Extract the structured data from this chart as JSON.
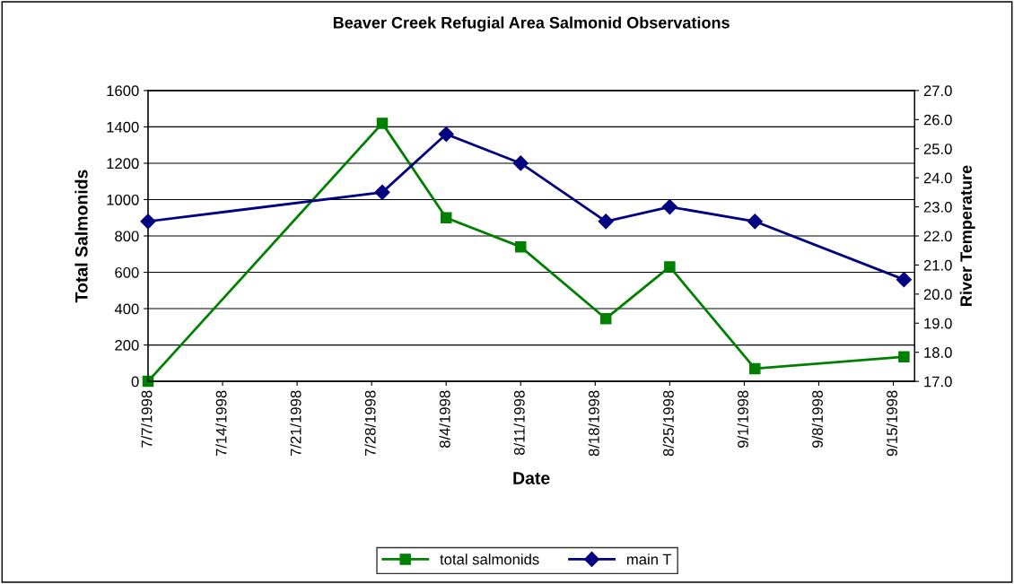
{
  "chart_data": {
    "type": "line",
    "title": "Beaver Creek Refugial Area Salmonid Observations",
    "xlabel": "Date",
    "ylabel": "Total Salmonids",
    "y2label": "River Temperature",
    "x": [
      "1998-07-07",
      "1998-07-29",
      "1998-08-04",
      "1998-08-11",
      "1998-08-19",
      "1998-08-25",
      "1998-09-02",
      "1998-09-16"
    ],
    "series": [
      {
        "name": "total salmonids",
        "color": "#008000",
        "marker": "square",
        "values": [
          0,
          1420,
          900,
          740,
          345,
          630,
          70,
          135
        ]
      },
      {
        "name": "main T",
        "color": "#000080",
        "marker": "diamond",
        "axis": "y2",
        "values": [
          22.5,
          23.5,
          25.5,
          24.5,
          22.5,
          23.0,
          22.5,
          20.5
        ]
      }
    ],
    "xlim": [
      "1998-07-07",
      "1998-09-17"
    ],
    "xticks": [
      {
        "value": "1998-07-07",
        "label": "7/7/1998"
      },
      {
        "value": "1998-07-14",
        "label": "7/14/1998"
      },
      {
        "value": "1998-07-21",
        "label": "7/21/1998"
      },
      {
        "value": "1998-07-28",
        "label": "7/28/1998"
      },
      {
        "value": "1998-08-04",
        "label": "8/4/1998"
      },
      {
        "value": "1998-08-11",
        "label": "8/11/1998"
      },
      {
        "value": "1998-08-18",
        "label": "8/18/1998"
      },
      {
        "value": "1998-08-25",
        "label": "8/25/1998"
      },
      {
        "value": "1998-09-01",
        "label": "9/1/1998"
      },
      {
        "value": "1998-09-08",
        "label": "9/8/1998"
      },
      {
        "value": "1998-09-15",
        "label": "9/15/1998"
      }
    ],
    "ylim": [
      0,
      1600
    ],
    "yticks": [
      0,
      200,
      400,
      600,
      800,
      1000,
      1200,
      1400,
      1600
    ],
    "y2lim": [
      17,
      27
    ],
    "y2ticks": [
      {
        "value": 17,
        "label": "17.0"
      },
      {
        "value": 18,
        "label": "18.0"
      },
      {
        "value": 19,
        "label": "19.0"
      },
      {
        "value": 20,
        "label": "20.0"
      },
      {
        "value": 21,
        "label": "21.0"
      },
      {
        "value": 22,
        "label": "22.0"
      },
      {
        "value": 23,
        "label": "23.0"
      },
      {
        "value": 24,
        "label": "24.0"
      },
      {
        "value": 25,
        "label": "25.0"
      },
      {
        "value": 26,
        "label": "26.0"
      },
      {
        "value": 27,
        "label": "27.0"
      }
    ],
    "grid": "y",
    "legend": "bottom",
    "line_style": "solid"
  }
}
